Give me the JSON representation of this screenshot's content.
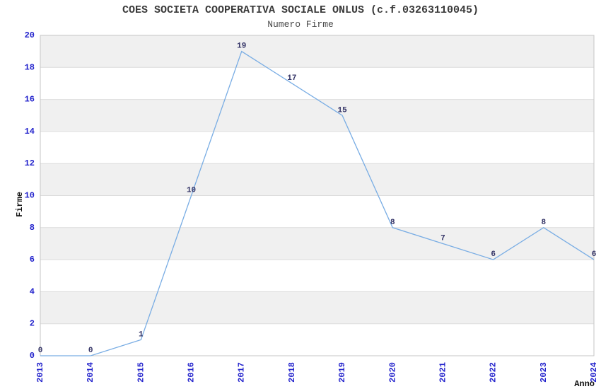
{
  "chart_data": {
    "type": "line",
    "title": "COES SOCIETA COOPERATIVA SOCIALE ONLUS (c.f.03263110045)",
    "subtitle": "Numero Firme",
    "xlabel": "Anno",
    "ylabel": "Firme",
    "categories": [
      "2013",
      "2014",
      "2015",
      "2016",
      "2017",
      "2018",
      "2019",
      "2020",
      "2021",
      "2022",
      "2023",
      "2024"
    ],
    "values": [
      0,
      0,
      1,
      10,
      19,
      17,
      15,
      8,
      7,
      6,
      8,
      6
    ],
    "ylim": [
      0,
      20
    ],
    "ytick_step": 2,
    "grid": "horizontal-bands-alternating",
    "legend_position": "none",
    "colors": {
      "line": "#79ade4",
      "tick_label": "#2222cc",
      "value_label": "#333366",
      "band": "#f0f0f0",
      "gridline": "#dcdcdc",
      "border": "#c6c6c6",
      "title": "#3a3a3a",
      "subtitle": "#4a4a4a",
      "axis_label": "#111111"
    }
  }
}
